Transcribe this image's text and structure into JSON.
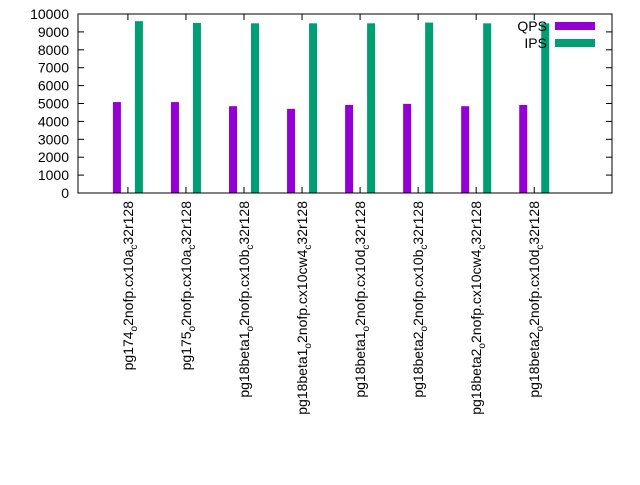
{
  "chart_data": {
    "type": "bar",
    "title": "",
    "xlabel": "",
    "ylabel": "",
    "ylim": [
      0,
      10000
    ],
    "yticks": [
      0,
      1000,
      2000,
      3000,
      4000,
      5000,
      6000,
      7000,
      8000,
      9000,
      10000
    ],
    "grid": false,
    "legend_position": "top-right",
    "categories": [
      {
        "base": "pg174",
        "sub1": "o",
        "mid": "2nofp.cx10a",
        "sub2": "c",
        "tail": "32r128"
      },
      {
        "base": "pg175",
        "sub1": "o",
        "mid": "2nofp.cx10a",
        "sub2": "c",
        "tail": "32r128"
      },
      {
        "base": "pg18beta1",
        "sub1": "o",
        "mid": "2nofp.cx10b",
        "sub2": "c",
        "tail": "32r128"
      },
      {
        "base": "pg18beta1",
        "sub1": "o",
        "mid": "2nofp.cx10cw4",
        "sub2": "c",
        "tail": "32r128"
      },
      {
        "base": "pg18beta1",
        "sub1": "o",
        "mid": "2nofp.cx10d",
        "sub2": "c",
        "tail": "32r128"
      },
      {
        "base": "pg18beta2",
        "sub1": "o",
        "mid": "2nofp.cx10b",
        "sub2": "c",
        "tail": "32r128"
      },
      {
        "base": "pg18beta2",
        "sub1": "o",
        "mid": "2nofp.cx10cw4",
        "sub2": "c",
        "tail": "32r128"
      },
      {
        "base": "pg18beta2",
        "sub1": "o",
        "mid": "2nofp.cx10d",
        "sub2": "c",
        "tail": "32r128"
      }
    ],
    "series": [
      {
        "name": "QPS",
        "color": "#9400d3",
        "values": [
          5080,
          5080,
          4850,
          4700,
          4920,
          4980,
          4850,
          4920
        ]
      },
      {
        "name": "IPS",
        "color": "#009e73",
        "values": [
          9600,
          9500,
          9480,
          9480,
          9480,
          9520,
          9480,
          9480
        ]
      }
    ]
  }
}
